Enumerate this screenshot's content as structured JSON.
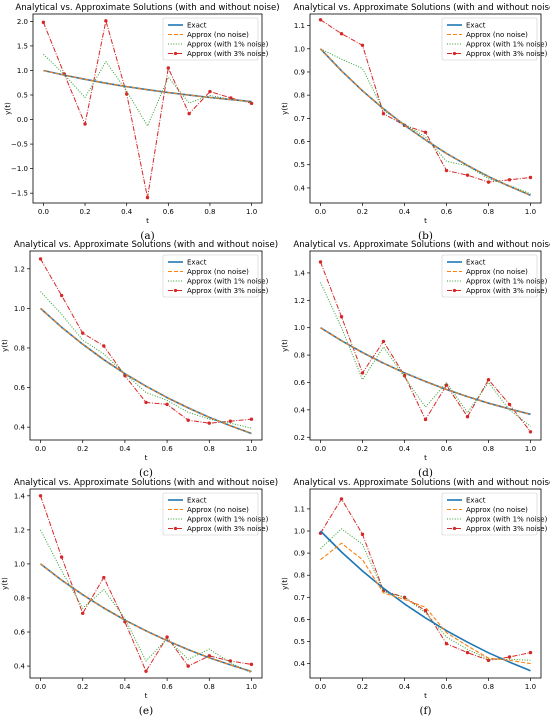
{
  "colors": {
    "exact": "#1f77b4",
    "no_noise": "#ff7f0e",
    "noise1": "#2ca02c",
    "noise3": "#d62728"
  },
  "chart_data": [
    {
      "type": "line",
      "caption": "(a)",
      "title": "Analytical vs. Approximate Solutions (with and without noise)",
      "xlabel": "t",
      "ylabel": "y(t)",
      "xlim": [
        -0.05,
        1.05
      ],
      "ylim": [
        -1.7,
        2.15
      ],
      "xticks": [
        0.0,
        0.2,
        0.4,
        0.6,
        0.8,
        1.0
      ],
      "xtick_labels": [
        "0.0",
        "0.2",
        "0.4",
        "0.6",
        "0.8",
        "1.0"
      ],
      "yticks": [
        -1.5,
        -1.0,
        -0.5,
        0.0,
        0.5,
        1.0,
        1.5,
        2.0
      ],
      "ytick_labels": [
        "−1.5",
        "−1.0",
        "−0.5",
        "0.0",
        "0.5",
        "1.0",
        "1.5",
        "2.0"
      ],
      "legend": "top-right",
      "series": [
        {
          "name": "Exact",
          "style": "exact",
          "x": [
            0,
            0.1,
            0.2,
            0.3,
            0.4,
            0.5,
            0.6,
            0.7,
            0.8,
            0.9,
            1.0
          ],
          "y": [
            1.0,
            0.905,
            0.819,
            0.741,
            0.67,
            0.607,
            0.549,
            0.497,
            0.449,
            0.407,
            0.368
          ]
        },
        {
          "name": "Approx (no noise)",
          "style": "no_noise",
          "x": [
            0,
            0.1,
            0.2,
            0.3,
            0.4,
            0.5,
            0.6,
            0.7,
            0.8,
            0.9,
            1.0
          ],
          "y": [
            1.0,
            0.905,
            0.819,
            0.741,
            0.67,
            0.607,
            0.549,
            0.497,
            0.449,
            0.407,
            0.368
          ]
        },
        {
          "name": "Approx (with 1% noise)",
          "style": "noise1",
          "x": [
            0,
            0.1,
            0.2,
            0.3,
            0.4,
            0.5,
            0.6,
            0.7,
            0.8,
            0.9,
            1.0
          ],
          "y": [
            1.33,
            0.92,
            0.45,
            1.18,
            0.58,
            -0.13,
            0.86,
            0.34,
            0.49,
            0.41,
            0.35
          ]
        },
        {
          "name": "Approx (with 3% noise)",
          "style": "noise3",
          "x": [
            0,
            0.1,
            0.2,
            0.3,
            0.4,
            0.5,
            0.6,
            0.7,
            0.8,
            0.9,
            1.0
          ],
          "y": [
            1.98,
            0.93,
            -0.09,
            2.01,
            0.52,
            -1.59,
            1.05,
            0.12,
            0.57,
            0.44,
            0.33
          ]
        }
      ]
    },
    {
      "type": "line",
      "caption": "(b)",
      "title": "Analytical vs. Approximate Solutions (with and without noise)",
      "xlabel": "t",
      "ylabel": "y(t)",
      "xlim": [
        -0.05,
        1.05
      ],
      "ylim": [
        0.335,
        1.15
      ],
      "xticks": [
        0.0,
        0.2,
        0.4,
        0.6,
        0.8,
        1.0
      ],
      "xtick_labels": [
        "0.0",
        "0.2",
        "0.4",
        "0.6",
        "0.8",
        "1.0"
      ],
      "yticks": [
        0.4,
        0.5,
        0.6,
        0.7,
        0.8,
        0.9,
        1.0,
        1.1
      ],
      "ytick_labels": [
        "0.4",
        "0.5",
        "0.6",
        "0.7",
        "0.8",
        "0.9",
        "1.0",
        "1.1"
      ],
      "legend": "top-right",
      "series": [
        {
          "name": "Exact",
          "style": "exact",
          "x": [
            0,
            0.1,
            0.2,
            0.3,
            0.4,
            0.5,
            0.6,
            0.7,
            0.8,
            0.9,
            1.0
          ],
          "y": [
            1.0,
            0.905,
            0.819,
            0.741,
            0.67,
            0.607,
            0.549,
            0.497,
            0.449,
            0.407,
            0.368
          ]
        },
        {
          "name": "Approx (no noise)",
          "style": "no_noise",
          "x": [
            0,
            0.1,
            0.2,
            0.3,
            0.4,
            0.5,
            0.6,
            0.7,
            0.8,
            0.9,
            1.0
          ],
          "y": [
            1.0,
            0.905,
            0.819,
            0.741,
            0.67,
            0.607,
            0.549,
            0.497,
            0.449,
            0.407,
            0.368
          ]
        },
        {
          "name": "Approx (with 1% noise)",
          "style": "noise1",
          "x": [
            0,
            0.1,
            0.2,
            0.3,
            0.4,
            0.5,
            0.6,
            0.7,
            0.8,
            0.9,
            1.0
          ],
          "y": [
            1.0,
            0.955,
            0.915,
            0.735,
            0.675,
            0.62,
            0.515,
            0.495,
            0.44,
            0.41,
            0.375
          ]
        },
        {
          "name": "Approx (with 3% noise)",
          "style": "noise3",
          "x": [
            0,
            0.1,
            0.2,
            0.3,
            0.4,
            0.5,
            0.6,
            0.7,
            0.8,
            0.9,
            1.0
          ],
          "y": [
            1.125,
            1.065,
            1.015,
            0.72,
            0.67,
            0.64,
            0.475,
            0.455,
            0.425,
            0.435,
            0.445
          ]
        }
      ]
    },
    {
      "type": "line",
      "caption": "(c)",
      "title": "Analytical vs. Approximate Solutions (with and without noise)",
      "xlabel": "t",
      "ylabel": "y(t)",
      "xlim": [
        -0.05,
        1.05
      ],
      "ylim": [
        0.335,
        1.29
      ],
      "xticks": [
        0.0,
        0.2,
        0.4,
        0.6,
        0.8,
        1.0
      ],
      "xtick_labels": [
        "0.0",
        "0.2",
        "0.4",
        "0.6",
        "0.8",
        "1.0"
      ],
      "yticks": [
        0.4,
        0.6,
        0.8,
        1.0,
        1.2
      ],
      "ytick_labels": [
        "0.4",
        "0.6",
        "0.8",
        "1.0",
        "1.2"
      ],
      "legend": "top-right",
      "series": [
        {
          "name": "Exact",
          "style": "exact",
          "x": [
            0,
            0.1,
            0.2,
            0.3,
            0.4,
            0.5,
            0.6,
            0.7,
            0.8,
            0.9,
            1.0
          ],
          "y": [
            1.0,
            0.905,
            0.819,
            0.741,
            0.67,
            0.607,
            0.549,
            0.497,
            0.449,
            0.407,
            0.368
          ]
        },
        {
          "name": "Approx (no noise)",
          "style": "no_noise",
          "x": [
            0,
            0.1,
            0.2,
            0.3,
            0.4,
            0.5,
            0.6,
            0.7,
            0.8,
            0.9,
            1.0
          ],
          "y": [
            1.0,
            0.905,
            0.819,
            0.741,
            0.67,
            0.607,
            0.549,
            0.497,
            0.449,
            0.407,
            0.368
          ]
        },
        {
          "name": "Approx (with 1% noise)",
          "style": "noise1",
          "x": [
            0,
            0.1,
            0.2,
            0.3,
            0.4,
            0.5,
            0.6,
            0.7,
            0.8,
            0.9,
            1.0
          ],
          "y": [
            1.085,
            0.97,
            0.84,
            0.77,
            0.67,
            0.575,
            0.535,
            0.475,
            0.44,
            0.42,
            0.395
          ]
        },
        {
          "name": "Approx (with 3% noise)",
          "style": "noise3",
          "x": [
            0,
            0.1,
            0.2,
            0.3,
            0.4,
            0.5,
            0.6,
            0.7,
            0.8,
            0.9,
            1.0
          ],
          "y": [
            1.25,
            1.065,
            0.875,
            0.81,
            0.66,
            0.525,
            0.515,
            0.435,
            0.42,
            0.43,
            0.44
          ]
        }
      ]
    },
    {
      "type": "line",
      "caption": "(d)",
      "title": "Analytical vs. Approximate Solutions (with and without noise)",
      "xlabel": "t",
      "ylabel": "y(t)",
      "xlim": [
        -0.05,
        1.05
      ],
      "ylim": [
        0.18,
        1.56
      ],
      "xticks": [
        0.0,
        0.2,
        0.4,
        0.6,
        0.8,
        1.0
      ],
      "xtick_labels": [
        "0.0",
        "0.2",
        "0.4",
        "0.6",
        "0.8",
        "1.0"
      ],
      "yticks": [
        0.2,
        0.4,
        0.6,
        0.8,
        1.0,
        1.2,
        1.4
      ],
      "ytick_labels": [
        "0.2",
        "0.4",
        "0.6",
        "0.8",
        "1.0",
        "1.2",
        "1.4"
      ],
      "legend": "top-right",
      "series": [
        {
          "name": "Exact",
          "style": "exact",
          "x": [
            0,
            0.1,
            0.2,
            0.3,
            0.4,
            0.5,
            0.6,
            0.7,
            0.8,
            0.9,
            1.0
          ],
          "y": [
            1.0,
            0.905,
            0.819,
            0.741,
            0.67,
            0.607,
            0.549,
            0.497,
            0.449,
            0.407,
            0.368
          ]
        },
        {
          "name": "Approx (no noise)",
          "style": "no_noise",
          "x": [
            0,
            0.1,
            0.2,
            0.3,
            0.4,
            0.5,
            0.6,
            0.7,
            0.8,
            0.9,
            1.0
          ],
          "y": [
            1.0,
            0.905,
            0.819,
            0.741,
            0.67,
            0.607,
            0.549,
            0.497,
            0.449,
            0.407,
            0.368
          ]
        },
        {
          "name": "Approx (with 1% noise)",
          "style": "noise1",
          "x": [
            0,
            0.1,
            0.2,
            0.3,
            0.4,
            0.5,
            0.6,
            0.7,
            0.8,
            0.9,
            1.0
          ],
          "y": [
            1.33,
            1.0,
            0.62,
            0.86,
            0.64,
            0.42,
            0.6,
            0.38,
            0.6,
            0.4,
            0.28
          ]
        },
        {
          "name": "Approx (with 3% noise)",
          "style": "noise3",
          "x": [
            0,
            0.1,
            0.2,
            0.3,
            0.4,
            0.5,
            0.6,
            0.7,
            0.8,
            0.9,
            1.0
          ],
          "y": [
            1.48,
            1.08,
            0.67,
            0.9,
            0.65,
            0.33,
            0.58,
            0.35,
            0.62,
            0.44,
            0.24
          ]
        }
      ]
    },
    {
      "type": "line",
      "caption": "(e)",
      "title": "Analytical vs. Approximate Solutions (with and without noise)",
      "xlabel": "t",
      "ylabel": "y(t)",
      "xlim": [
        -0.05,
        1.05
      ],
      "ylim": [
        0.33,
        1.44
      ],
      "xticks": [
        0.0,
        0.2,
        0.4,
        0.6,
        0.8,
        1.0
      ],
      "xtick_labels": [
        "0.0",
        "0.2",
        "0.4",
        "0.6",
        "0.8",
        "1.0"
      ],
      "yticks": [
        0.4,
        0.6,
        0.8,
        1.0,
        1.2,
        1.4
      ],
      "ytick_labels": [
        "0.4",
        "0.6",
        "0.8",
        "1.0",
        "1.2",
        "1.4"
      ],
      "legend": "top-right",
      "series": [
        {
          "name": "Exact",
          "style": "exact",
          "x": [
            0,
            0.1,
            0.2,
            0.3,
            0.4,
            0.5,
            0.6,
            0.7,
            0.8,
            0.9,
            1.0
          ],
          "y": [
            1.0,
            0.905,
            0.819,
            0.741,
            0.67,
            0.607,
            0.549,
            0.497,
            0.449,
            0.407,
            0.368
          ]
        },
        {
          "name": "Approx (no noise)",
          "style": "no_noise",
          "x": [
            0,
            0.1,
            0.2,
            0.3,
            0.4,
            0.5,
            0.6,
            0.7,
            0.8,
            0.9,
            1.0
          ],
          "y": [
            1.0,
            0.905,
            0.819,
            0.741,
            0.67,
            0.607,
            0.549,
            0.497,
            0.449,
            0.407,
            0.368
          ]
        },
        {
          "name": "Approx (with 1% noise)",
          "style": "noise1",
          "x": [
            0,
            0.1,
            0.2,
            0.3,
            0.4,
            0.5,
            0.6,
            0.7,
            0.8,
            0.9,
            1.0
          ],
          "y": [
            1.2,
            0.96,
            0.74,
            0.85,
            0.68,
            0.43,
            0.56,
            0.44,
            0.5,
            0.42,
            0.36
          ]
        },
        {
          "name": "Approx (with 3% noise)",
          "style": "noise3",
          "x": [
            0,
            0.1,
            0.2,
            0.3,
            0.4,
            0.5,
            0.6,
            0.7,
            0.8,
            0.9,
            1.0
          ],
          "y": [
            1.4,
            1.04,
            0.71,
            0.92,
            0.66,
            0.37,
            0.57,
            0.4,
            0.46,
            0.43,
            0.41
          ]
        }
      ]
    },
    {
      "type": "line",
      "caption": "(f)",
      "title": "Analytical vs. Approximate Solutions (with and without noise)",
      "xlabel": "t",
      "ylabel": "y(t)",
      "xlim": [
        -0.05,
        1.05
      ],
      "ylim": [
        0.335,
        1.19
      ],
      "xticks": [
        0.0,
        0.2,
        0.4,
        0.6,
        0.8,
        1.0
      ],
      "xtick_labels": [
        "0.0",
        "0.2",
        "0.4",
        "0.6",
        "0.8",
        "1.0"
      ],
      "yticks": [
        0.4,
        0.5,
        0.6,
        0.7,
        0.8,
        0.9,
        1.0,
        1.1
      ],
      "ytick_labels": [
        "0.4",
        "0.5",
        "0.6",
        "0.7",
        "0.8",
        "0.9",
        "1.0",
        "1.1"
      ],
      "legend": "top-right",
      "series": [
        {
          "name": "Exact",
          "style": "exact",
          "x": [
            0,
            0.1,
            0.2,
            0.3,
            0.4,
            0.5,
            0.6,
            0.7,
            0.8,
            0.9,
            1.0
          ],
          "y": [
            1.0,
            0.905,
            0.819,
            0.741,
            0.67,
            0.607,
            0.549,
            0.497,
            0.449,
            0.407,
            0.368
          ]
        },
        {
          "name": "Approx (no noise)",
          "style": "no_noise",
          "x": [
            0,
            0.1,
            0.2,
            0.3,
            0.4,
            0.5,
            0.6,
            0.7,
            0.8,
            0.9,
            1.0
          ],
          "y": [
            0.87,
            0.945,
            0.87,
            0.72,
            0.69,
            0.655,
            0.54,
            0.48,
            0.425,
            0.415,
            0.4
          ]
        },
        {
          "name": "Approx (with 1% noise)",
          "style": "noise1",
          "x": [
            0,
            0.1,
            0.2,
            0.3,
            0.4,
            0.5,
            0.6,
            0.7,
            0.8,
            0.9,
            1.0
          ],
          "y": [
            0.92,
            1.01,
            0.94,
            0.725,
            0.7,
            0.63,
            0.52,
            0.465,
            0.42,
            0.42,
            0.415
          ]
        },
        {
          "name": "Approx (with 3% noise)",
          "style": "noise3",
          "x": [
            0,
            0.1,
            0.2,
            0.3,
            0.4,
            0.5,
            0.6,
            0.7,
            0.8,
            0.9,
            1.0
          ],
          "y": [
            0.99,
            1.145,
            0.985,
            0.73,
            0.7,
            0.64,
            0.49,
            0.45,
            0.415,
            0.43,
            0.45
          ]
        }
      ]
    }
  ]
}
